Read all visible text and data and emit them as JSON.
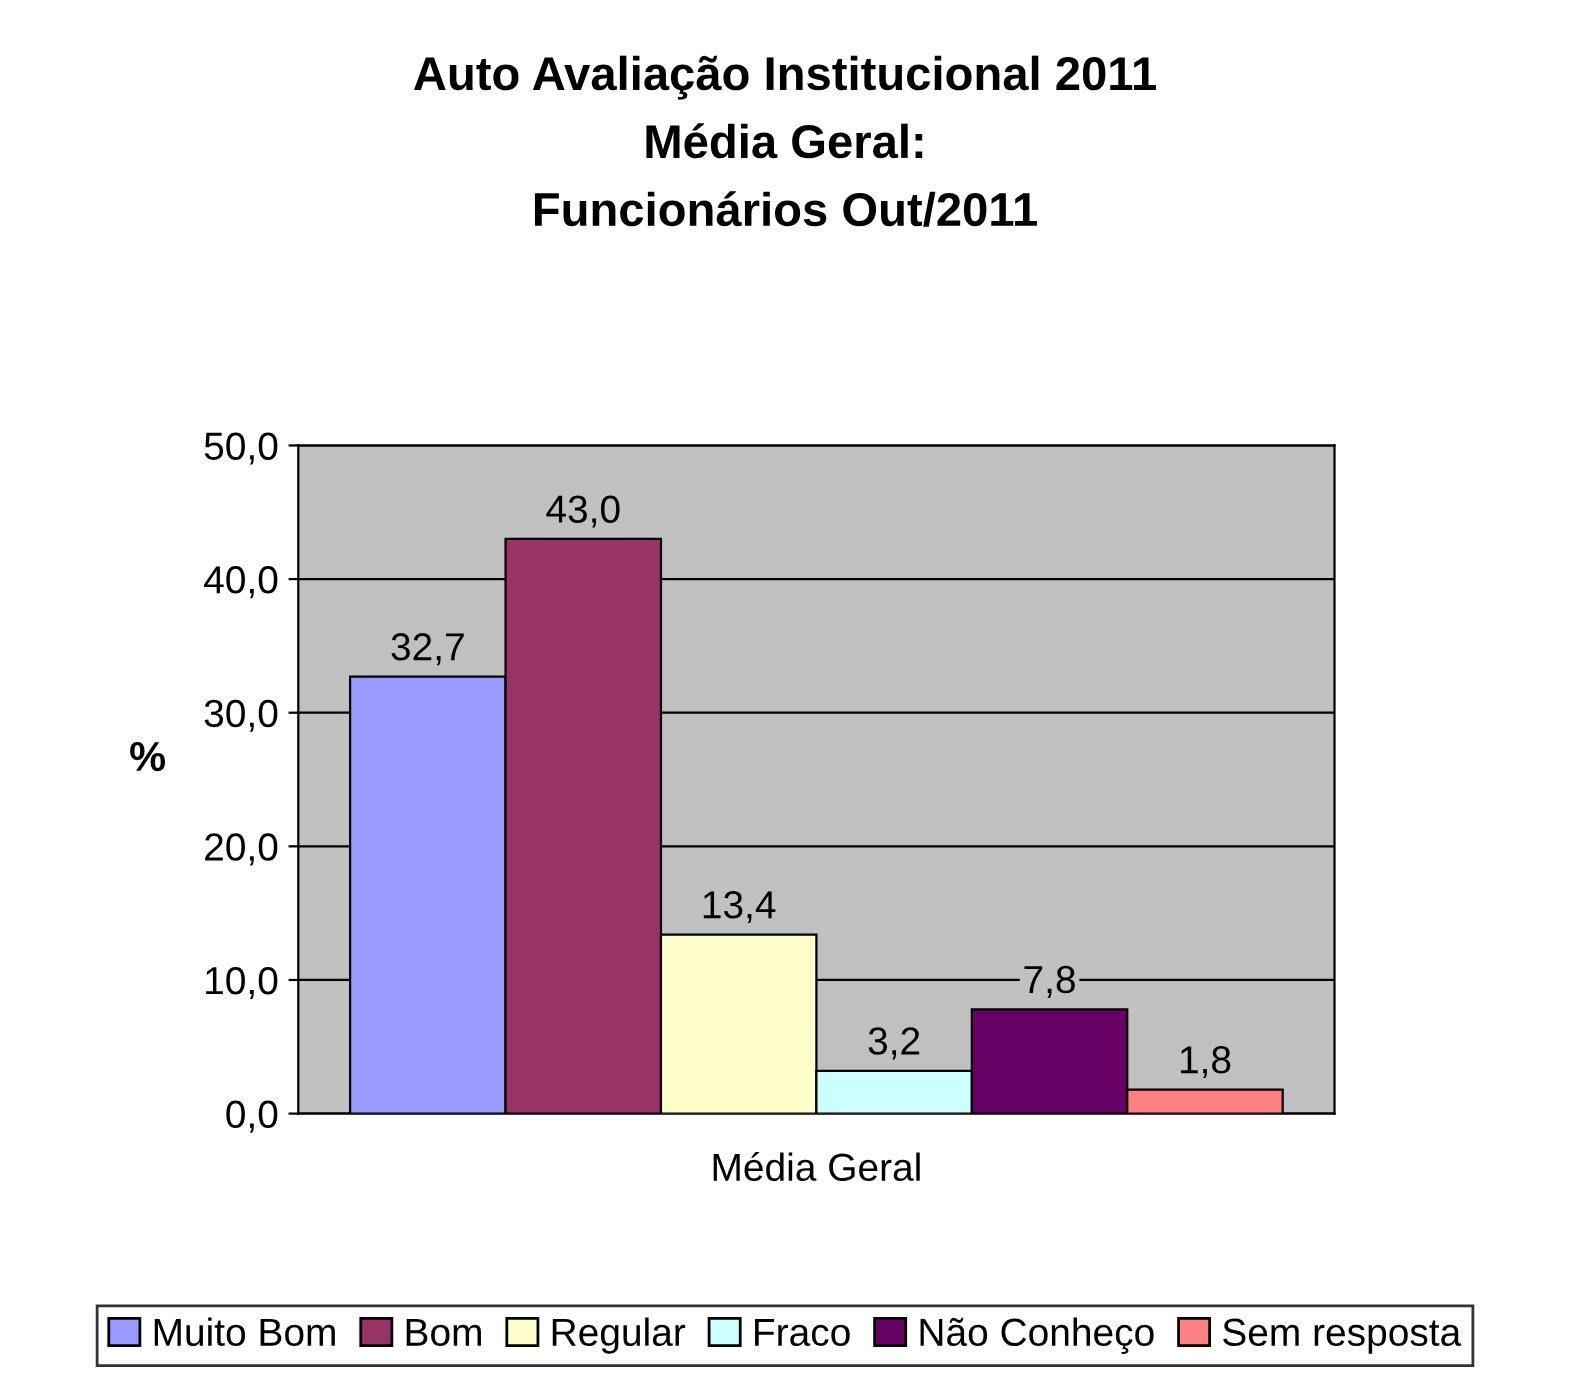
{
  "chart_data": {
    "type": "bar",
    "title": "Auto Avaliação Institucional 2011\nMédia Geral:\nFuncionários Out/2011",
    "ylabel": "%",
    "categories": [
      "Média Geral"
    ],
    "series": [
      {
        "name": "Muito Bom",
        "color": "#9999ff",
        "values": [
          32.7
        ],
        "value_labels": [
          "32,7"
        ]
      },
      {
        "name": "Bom",
        "color": "#993366",
        "values": [
          43.0
        ],
        "value_labels": [
          "43,0"
        ]
      },
      {
        "name": "Regular",
        "color": "#ffffcc",
        "values": [
          13.4
        ],
        "value_labels": [
          "13,4"
        ]
      },
      {
        "name": "Fraco",
        "color": "#ccffff",
        "values": [
          3.2
        ],
        "value_labels": [
          "3,2"
        ]
      },
      {
        "name": "Não Conheço",
        "color": "#660066",
        "values": [
          7.8
        ],
        "value_labels": [
          "7,8"
        ]
      },
      {
        "name": "Sem resposta",
        "color": "#ff8080",
        "values": [
          1.8
        ],
        "value_labels": [
          "1,8"
        ]
      }
    ],
    "ylim": [
      0,
      50
    ],
    "yticks": [
      {
        "value": 0,
        "label": "0,0"
      },
      {
        "value": 10,
        "label": "10,0"
      },
      {
        "value": 20,
        "label": "20,0"
      },
      {
        "value": 30,
        "label": "30,0"
      },
      {
        "value": 40,
        "label": "40,0"
      },
      {
        "value": 50,
        "label": "50,0"
      }
    ],
    "grid": "y",
    "legend": "bottom"
  }
}
